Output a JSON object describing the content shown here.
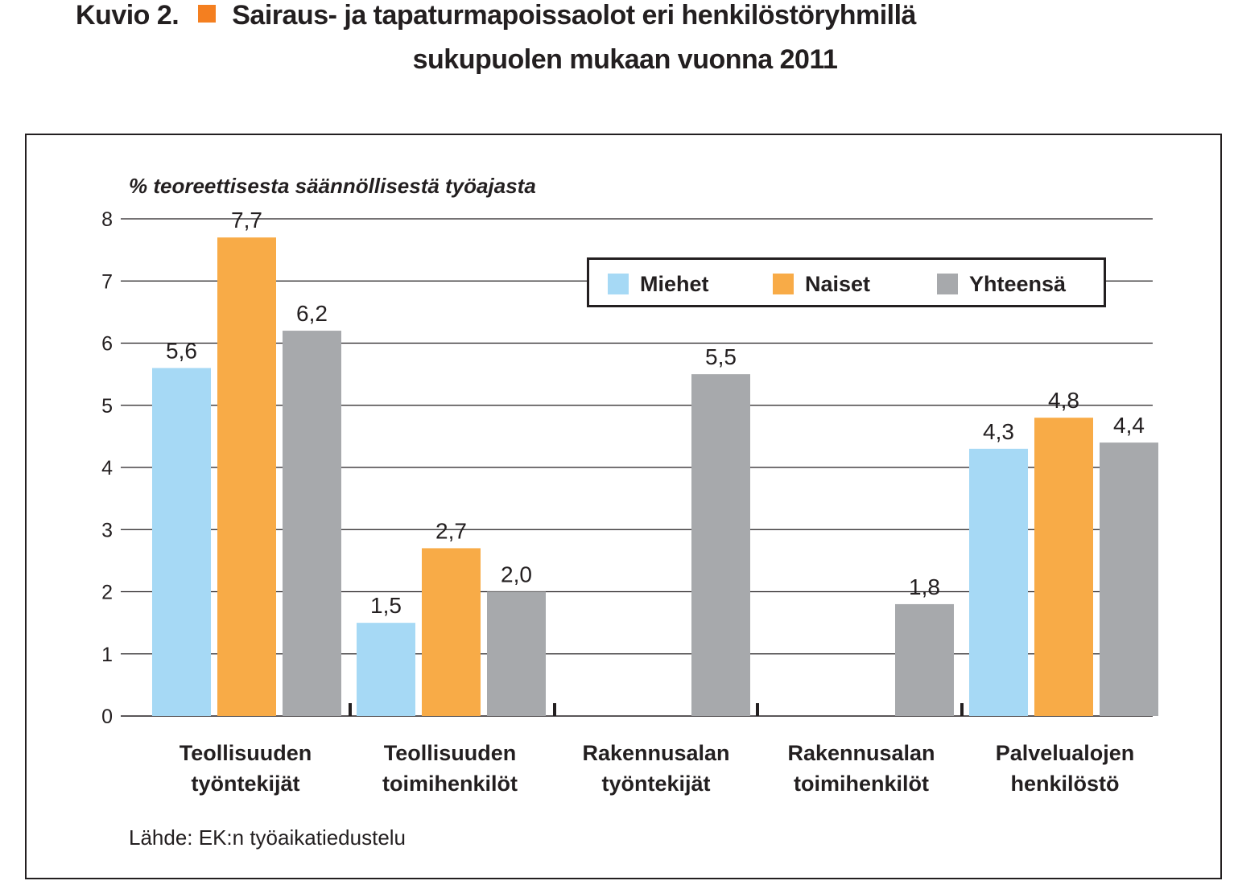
{
  "figure": {
    "number_label": "Kuvio 2.",
    "title_part1": "Sairaus- ja tapaturmapoissaolot eri henkilöstöryhmillä",
    "title_part2": "sukupuolen mukaan vuonna 2011",
    "title_marker_color": "#f47f20",
    "source": "Lähde: EK:n työaikatiedustelu"
  },
  "chart_data": {
    "type": "bar",
    "title": "Sairaus- ja tapaturmapoissaolot eri henkilöstöryhmillä sukupuolen mukaan vuonna 2011",
    "ylabel": "% teoreettisesta säännöllisestä työajasta",
    "xlabel": "",
    "ylim": [
      0,
      8
    ],
    "yticks": [
      "0",
      "1",
      "2",
      "3",
      "4",
      "5",
      "6",
      "7",
      "8"
    ],
    "grid": true,
    "legend_position": "top-right",
    "categories": [
      [
        "Teollisuuden",
        "työntekijät"
      ],
      [
        "Teollisuuden",
        "toimihenkilöt"
      ],
      [
        "Rakennusalan",
        "työntekijät"
      ],
      [
        "Rakennusalan",
        "toimihenkilöt"
      ],
      [
        "Palvelualojen",
        "henkilöstö"
      ]
    ],
    "series": [
      {
        "name": "Miehet",
        "color": "#a6d9f5",
        "values": [
          5.6,
          1.5,
          null,
          null,
          4.3
        ],
        "labels": [
          "5,6",
          "1,5",
          null,
          null,
          "4,3"
        ]
      },
      {
        "name": "Naiset",
        "color": "#f8ab47",
        "values": [
          7.7,
          2.7,
          null,
          null,
          4.8
        ],
        "labels": [
          "7,7",
          "2,7",
          null,
          null,
          "4,8"
        ]
      },
      {
        "name": "Yhteensä",
        "color": "#a7a9ac",
        "values": [
          6.2,
          2.0,
          5.5,
          1.8,
          4.4
        ],
        "labels": [
          "6,2",
          "2,0",
          "5,5",
          "1,8",
          "4,4"
        ]
      }
    ]
  }
}
